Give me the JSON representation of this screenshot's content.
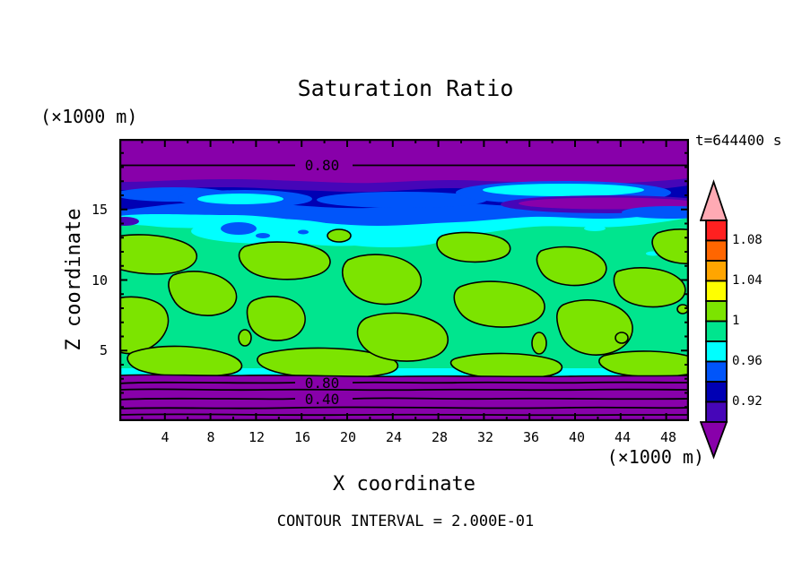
{
  "chart_data": {
    "type": "filled-contour",
    "title": "Saturation Ratio",
    "time_label": "t=644400 s",
    "contour_interval_label": "CONTOUR INTERVAL = 2.000E-01",
    "contour_interval": 0.2,
    "x_axis": {
      "label": "X coordinate",
      "unit": "(×1000 m)",
      "min": 0,
      "max": 50,
      "major_ticks": [
        4,
        8,
        12,
        16,
        20,
        24,
        28,
        32,
        36,
        40,
        44,
        48
      ],
      "minor_ticks": [
        2,
        6,
        10,
        14,
        18,
        22,
        26,
        30,
        34,
        38,
        42,
        46,
        50
      ],
      "tick_labels": [
        "4",
        "8",
        "12",
        "16",
        "20",
        "24",
        "28",
        "32",
        "36",
        "40",
        "44",
        "48"
      ]
    },
    "z_axis": {
      "label": "Z coordinate",
      "unit": "(×1000 m)",
      "min": 0,
      "max": 20,
      "major_ticks": [
        5,
        10,
        15
      ],
      "minor_ticks": [
        1,
        2,
        3,
        4,
        6,
        7,
        8,
        9,
        11,
        12,
        13,
        14,
        16,
        17,
        18,
        19
      ],
      "tick_labels": [
        "5",
        "10",
        "15"
      ]
    },
    "colorbar": {
      "labels": [
        "1.08",
        "1.04",
        "1",
        "0.96",
        "0.92"
      ],
      "segment_colors": [
        "#FF2020",
        "#FF6600",
        "#FFA500",
        "#FFFF00",
        "#7CE400",
        "#00E58E",
        "#00FFFF",
        "#0055FA",
        "#0000B4",
        "#4606B8"
      ],
      "over_color": "#FFAAB4",
      "under_color": "#8800AA",
      "level_step": 0.02,
      "labeled_levels": [
        1.08,
        1.04,
        1.0,
        0.96,
        0.92
      ]
    },
    "contour_labels": {
      "top_080": "0.80",
      "bottom_080": "0.80",
      "bottom_040": "0.40"
    },
    "description": "Saturation ratio field: purple (S<0.9) layers at top of domain and below z≈4; dark blue/blue/cyan streaky band near z≈14-17; mottled spring-green field (S≈0.96-1) with chartreuse (S≈1-1.02) blobs between z≈4 and z≈14; horizontal labeled contour lines at 0.80 (top and bottom) and 0.40 (bottom)."
  }
}
